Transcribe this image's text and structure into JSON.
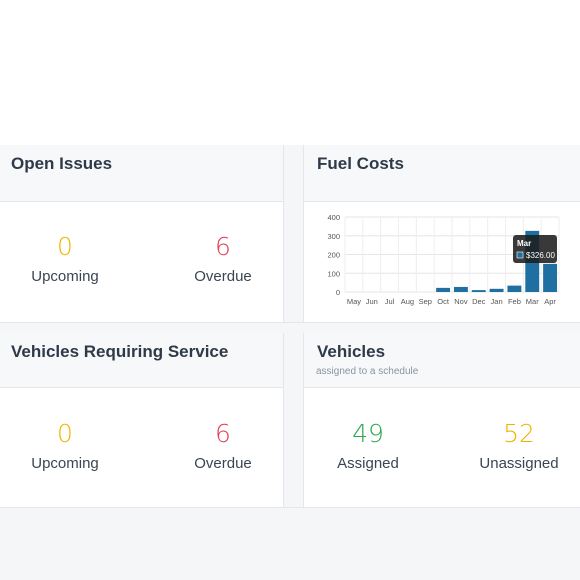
{
  "open_issues": {
    "title": "Open Issues",
    "upcoming_value": "0",
    "upcoming_label": "Upcoming",
    "overdue_value": "6",
    "overdue_label": "Overdue"
  },
  "fuel_costs": {
    "title": "Fuel Costs",
    "tooltip": {
      "title": "Mar",
      "value": "$326.00"
    }
  },
  "service": {
    "title": "Vehicles Requiring Service",
    "upcoming_value": "0",
    "upcoming_label": "Upcoming",
    "overdue_value": "6",
    "overdue_label": "Overdue"
  },
  "vehicles": {
    "title": "Vehicles",
    "subtitle": "assigned to a schedule",
    "assigned_value": "49",
    "assigned_label": "Assigned",
    "unassigned_value": "52",
    "unassigned_label": "Unassigned"
  },
  "colors": {
    "bar": "#1f6fa3",
    "yellow": "#f0b400",
    "red": "#e23d55",
    "green": "#2fa84f"
  },
  "chart_data": {
    "type": "bar",
    "categories": [
      "May",
      "Jun",
      "Jul",
      "Aug",
      "Sep",
      "Oct",
      "Nov",
      "Dec",
      "Jan",
      "Feb",
      "Mar",
      "Apr"
    ],
    "values": [
      0,
      0,
      0,
      0,
      0,
      22,
      27,
      10,
      17,
      34,
      326,
      150
    ],
    "ylim": [
      0,
      400
    ],
    "yticks": [
      0,
      100,
      200,
      300,
      400
    ],
    "grid": true
  }
}
